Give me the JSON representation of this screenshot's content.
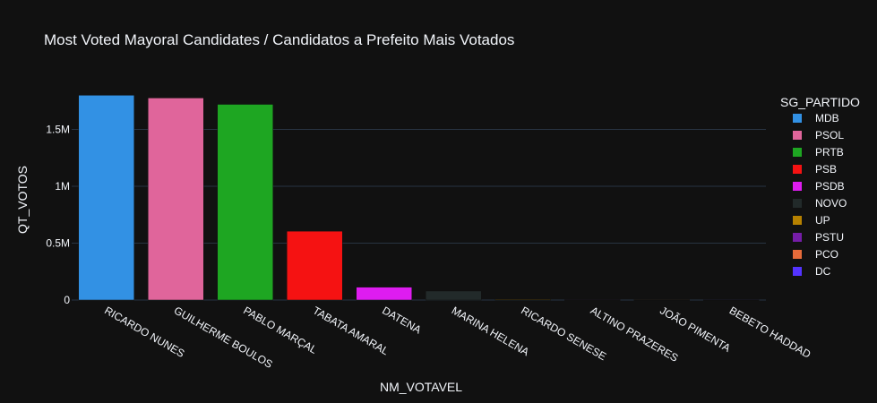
{
  "chart_data": {
    "type": "bar",
    "title": "Most Voted Mayoral Candidates / Candidatos a Prefeito Mais Votados",
    "xlabel": "NM_VOTAVEL",
    "ylabel": "QT_VOTOS",
    "ylim": [
      0,
      1850000
    ],
    "yticks": [
      {
        "value": 0,
        "label": "0"
      },
      {
        "value": 500000,
        "label": "0.5M"
      },
      {
        "value": 1000000,
        "label": "1M"
      },
      {
        "value": 1500000,
        "label": "1.5M"
      }
    ],
    "grid": true,
    "legend_title": "SG_PARTIDO",
    "legend_position": "right",
    "categories": [
      "RICARDO NUNES",
      "GUILHERME BOULOS",
      "PABLO MARÇAL",
      "TABATA AMARAL",
      "DATENA",
      "MARINA HELENA",
      "RICARDO SENESE",
      "ALTINO PRAZERES",
      "JOÃO PIMENTA",
      "BEBETO HADDAD"
    ],
    "series": [
      {
        "name": "MDB",
        "color": "#3291e4",
        "category": "RICARDO NUNES",
        "value": 1800000
      },
      {
        "name": "PSOL",
        "color": "#e0659b",
        "category": "GUILHERME BOULOS",
        "value": 1776000
      },
      {
        "name": "PRTB",
        "color": "#1ea622",
        "category": "PABLO MARÇAL",
        "value": 1720000
      },
      {
        "name": "PSB",
        "color": "#f51212",
        "category": "TABATA AMARAL",
        "value": 605000
      },
      {
        "name": "PSDB",
        "color": "#de1cf0",
        "category": "DATENA",
        "value": 113000
      },
      {
        "name": "NOVO",
        "color": "#222a2a",
        "category": "MARINA HELENA",
        "value": 79000
      },
      {
        "name": "UP",
        "color": "#b68100",
        "category": "RICARDO SENESE",
        "value": 5000
      },
      {
        "name": "PSTU",
        "color": "#751da7",
        "category": "ALTINO PRAZERES",
        "value": 1500
      },
      {
        "name": "PCO",
        "color": "#e56b3a",
        "category": "JOÃO PIMENTA",
        "value": 1200
      },
      {
        "name": "DC",
        "color": "#5433ff",
        "category": "BEBETO HADDAD",
        "value": 900
      }
    ]
  }
}
